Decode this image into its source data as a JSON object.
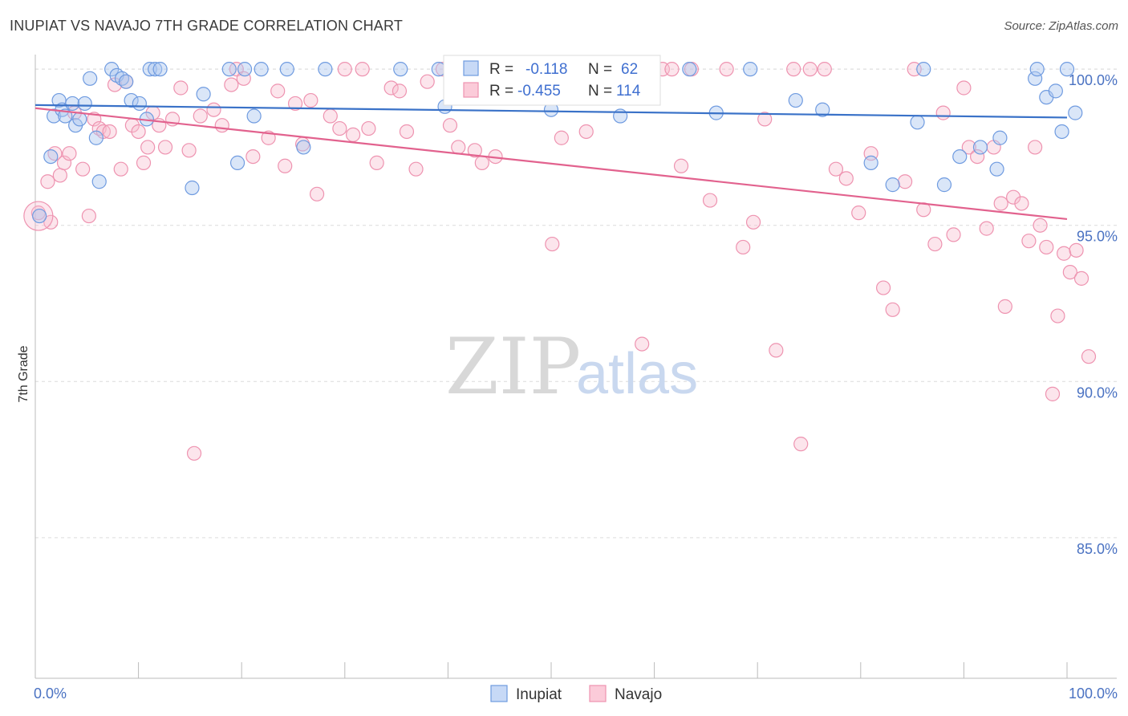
{
  "title": "INUPIAT VS NAVAJO 7TH GRADE CORRELATION CHART",
  "source": "Source: ZipAtlas.com",
  "watermark": {
    "zip": "ZIP",
    "atlas": "atlas"
  },
  "colors": {
    "inupiat": "#6f9be0",
    "navajo": "#ee93b0",
    "inupiat_line": "#3a72c8",
    "navajo_line": "#e2628e"
  },
  "legend": {
    "rows": [
      {
        "r_label": "R =",
        "r_value": "-0.118",
        "n_label": "N =",
        "n_value": "62"
      },
      {
        "r_label": "R =",
        "r_value": "-0.455",
        "n_label": "N =",
        "n_value": "114"
      }
    ]
  },
  "chart_data": {
    "type": "scatter",
    "title": "INUPIAT VS NAVAJO 7TH GRADE CORRELATION CHART",
    "xlabel": "",
    "ylabel": "7th Grade",
    "xlim": [
      0,
      100
    ],
    "ylim": [
      80.5,
      100.8
    ],
    "x_tick_labels": [
      "0.0%",
      "100.0%"
    ],
    "y_ticks": [
      85,
      90,
      95,
      100
    ],
    "y_tick_labels": [
      "85.0%",
      "90.0%",
      "95.0%",
      "100.0%"
    ],
    "grid": true,
    "legend_position": "bottom-center",
    "series": [
      {
        "name": "Inupiat",
        "trend": {
          "x0": 0,
          "y0": 98.85,
          "x1": 100,
          "y1": 98.45
        },
        "points": [
          [
            0.4,
            95.3
          ],
          [
            1.5,
            97.2
          ],
          [
            1.8,
            98.5
          ],
          [
            2.3,
            99.0
          ],
          [
            2.6,
            98.7
          ],
          [
            2.9,
            98.5
          ],
          [
            3.6,
            98.9
          ],
          [
            3.9,
            98.2
          ],
          [
            4.3,
            98.4
          ],
          [
            4.8,
            98.9
          ],
          [
            5.3,
            99.7
          ],
          [
            5.9,
            97.8
          ],
          [
            6.2,
            96.4
          ],
          [
            7.4,
            100.0
          ],
          [
            7.9,
            99.8
          ],
          [
            8.4,
            99.7
          ],
          [
            8.8,
            99.6
          ],
          [
            9.3,
            99.0
          ],
          [
            10.1,
            98.9
          ],
          [
            10.8,
            98.4
          ],
          [
            11.1,
            100.0
          ],
          [
            11.6,
            100.0
          ],
          [
            12.1,
            100.0
          ],
          [
            15.2,
            96.2
          ],
          [
            16.3,
            99.2
          ],
          [
            18.8,
            100.0
          ],
          [
            19.6,
            97.0
          ],
          [
            20.3,
            100.0
          ],
          [
            21.2,
            98.5
          ],
          [
            21.9,
            100.0
          ],
          [
            24.4,
            100.0
          ],
          [
            26.0,
            97.5
          ],
          [
            28.1,
            100.0
          ],
          [
            35.4,
            100.0
          ],
          [
            39.1,
            100.0
          ],
          [
            39.7,
            98.8
          ],
          [
            44.0,
            100.0
          ],
          [
            50.0,
            98.7
          ],
          [
            52.7,
            100.0
          ],
          [
            56.7,
            98.5
          ],
          [
            59.2,
            99.8
          ],
          [
            63.4,
            100.0
          ],
          [
            66.0,
            98.6
          ],
          [
            69.3,
            100.0
          ],
          [
            73.7,
            99.0
          ],
          [
            76.3,
            98.7
          ],
          [
            81.0,
            97.0
          ],
          [
            83.1,
            96.3
          ],
          [
            85.5,
            98.3
          ],
          [
            86.1,
            100.0
          ],
          [
            88.1,
            96.3
          ],
          [
            89.6,
            97.2
          ],
          [
            91.6,
            97.5
          ],
          [
            93.2,
            96.8
          ],
          [
            93.5,
            97.8
          ],
          [
            96.9,
            99.7
          ],
          [
            97.1,
            100.0
          ],
          [
            98.0,
            99.1
          ],
          [
            98.9,
            99.3
          ],
          [
            99.5,
            98.0
          ],
          [
            100.0,
            100.0
          ],
          [
            100.8,
            98.6
          ]
        ]
      },
      {
        "name": "Navajo",
        "trend": {
          "x0": 0,
          "y0": 98.75,
          "x1": 100,
          "y1": 95.2
        },
        "points": [
          [
            0.3,
            95.4
          ],
          [
            1.2,
            96.4
          ],
          [
            1.5,
            95.1
          ],
          [
            1.9,
            97.3
          ],
          [
            2.4,
            96.6
          ],
          [
            2.8,
            97.0
          ],
          [
            3.3,
            97.3
          ],
          [
            3.8,
            98.6
          ],
          [
            4.6,
            96.8
          ],
          [
            5.2,
            95.3
          ],
          [
            5.7,
            98.4
          ],
          [
            6.2,
            98.1
          ],
          [
            6.6,
            98.0
          ],
          [
            7.2,
            98.0
          ],
          [
            7.7,
            99.5
          ],
          [
            8.3,
            96.8
          ],
          [
            8.8,
            99.6
          ],
          [
            9.4,
            98.2
          ],
          [
            10.0,
            98.0
          ],
          [
            10.5,
            97.0
          ],
          [
            10.9,
            97.5
          ],
          [
            11.4,
            98.6
          ],
          [
            12.0,
            98.2
          ],
          [
            12.6,
            97.5
          ],
          [
            13.3,
            98.4
          ],
          [
            14.1,
            99.4
          ],
          [
            14.9,
            97.4
          ],
          [
            15.4,
            87.7
          ],
          [
            16.0,
            98.5
          ],
          [
            17.3,
            98.7
          ],
          [
            18.1,
            98.2
          ],
          [
            19.0,
            99.5
          ],
          [
            19.5,
            100.0
          ],
          [
            20.2,
            99.7
          ],
          [
            21.1,
            97.2
          ],
          [
            22.6,
            97.8
          ],
          [
            23.5,
            99.3
          ],
          [
            24.2,
            96.9
          ],
          [
            25.2,
            98.9
          ],
          [
            25.9,
            97.6
          ],
          [
            26.7,
            99.0
          ],
          [
            27.3,
            96.0
          ],
          [
            28.6,
            98.5
          ],
          [
            29.5,
            98.1
          ],
          [
            30.0,
            100.0
          ],
          [
            30.8,
            97.9
          ],
          [
            31.7,
            100.0
          ],
          [
            32.3,
            98.1
          ],
          [
            33.1,
            97.0
          ],
          [
            34.5,
            99.4
          ],
          [
            35.3,
            99.3
          ],
          [
            36.0,
            98.0
          ],
          [
            36.9,
            96.8
          ],
          [
            38.0,
            99.6
          ],
          [
            39.5,
            100.0
          ],
          [
            40.2,
            98.2
          ],
          [
            41.0,
            97.5
          ],
          [
            42.6,
            97.4
          ],
          [
            43.3,
            97.0
          ],
          [
            44.6,
            97.2
          ],
          [
            46.5,
            100.0
          ],
          [
            47.8,
            100.0
          ],
          [
            48.5,
            100.0
          ],
          [
            49.2,
            100.0
          ],
          [
            50.1,
            94.4
          ],
          [
            51.0,
            97.8
          ],
          [
            52.2,
            100.0
          ],
          [
            53.4,
            98.0
          ],
          [
            54.6,
            100.0
          ],
          [
            57.7,
            100.0
          ],
          [
            58.8,
            91.2
          ],
          [
            59.7,
            100.0
          ],
          [
            60.8,
            100.0
          ],
          [
            61.7,
            100.0
          ],
          [
            62.6,
            96.9
          ],
          [
            63.6,
            100.0
          ],
          [
            65.4,
            95.8
          ],
          [
            67.0,
            100.0
          ],
          [
            68.6,
            94.3
          ],
          [
            69.6,
            95.1
          ],
          [
            70.7,
            98.4
          ],
          [
            71.8,
            91.0
          ],
          [
            73.5,
            100.0
          ],
          [
            74.2,
            88.0
          ],
          [
            75.1,
            100.0
          ],
          [
            76.5,
            100.0
          ],
          [
            77.6,
            96.8
          ],
          [
            78.6,
            96.5
          ],
          [
            79.8,
            95.4
          ],
          [
            81.0,
            97.3
          ],
          [
            82.2,
            93.0
          ],
          [
            83.1,
            92.3
          ],
          [
            84.3,
            96.4
          ],
          [
            85.2,
            100.0
          ],
          [
            86.1,
            95.5
          ],
          [
            87.2,
            94.4
          ],
          [
            88.0,
            98.6
          ],
          [
            89.0,
            94.7
          ],
          [
            90.0,
            99.4
          ],
          [
            90.5,
            97.5
          ],
          [
            91.3,
            97.2
          ],
          [
            92.2,
            94.9
          ],
          [
            92.9,
            97.5
          ],
          [
            93.6,
            95.7
          ],
          [
            94.0,
            92.4
          ],
          [
            94.8,
            95.9
          ],
          [
            95.6,
            95.7
          ],
          [
            96.3,
            94.5
          ],
          [
            96.9,
            97.5
          ],
          [
            97.4,
            95.0
          ],
          [
            98.0,
            94.3
          ],
          [
            98.6,
            89.6
          ],
          [
            99.1,
            92.1
          ],
          [
            99.7,
            94.1
          ],
          [
            100.3,
            93.5
          ],
          [
            100.9,
            94.2
          ],
          [
            101.4,
            93.3
          ],
          [
            102.1,
            90.8
          ]
        ]
      }
    ]
  },
  "bottom_legend": {
    "items": [
      "Inupiat",
      "Navajo"
    ]
  }
}
